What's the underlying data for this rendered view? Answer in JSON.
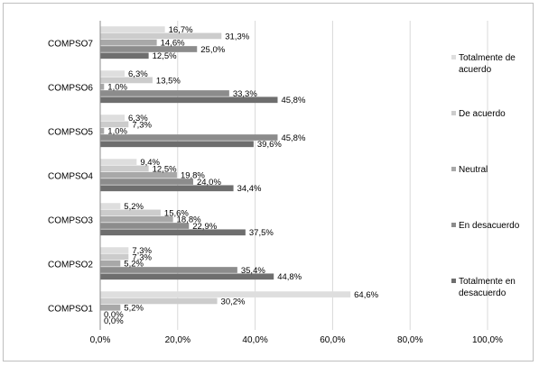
{
  "chart_data": {
    "type": "bar",
    "orientation": "horizontal",
    "categories": [
      "COMPSO1",
      "COMPSO2",
      "COMPSO3",
      "COMPSO4",
      "COMPSO5",
      "COMPSO6",
      "COMPSO7"
    ],
    "series": [
      {
        "name": "Totalmente de acuerdo",
        "color": "#dedede",
        "values": [
          64.6,
          7.3,
          5.2,
          9.4,
          6.3,
          6.3,
          16.7
        ],
        "labels": [
          "64,6%",
          "7,3%",
          "5,2%",
          "9,4%",
          "6,3%",
          "6,3%",
          "16,7%"
        ]
      },
      {
        "name": "De acuerdo",
        "color": "#cccccc",
        "values": [
          30.2,
          7.3,
          15.6,
          12.5,
          7.3,
          13.5,
          31.3
        ],
        "labels": [
          "30,2%",
          "7,3%",
          "15,6%",
          "12,5%",
          "7,3%",
          "13,5%",
          "31,3%"
        ]
      },
      {
        "name": "Neutral",
        "color": "#a8a8a8",
        "values": [
          5.2,
          5.2,
          18.8,
          19.8,
          1.0,
          1.0,
          14.6
        ],
        "labels": [
          "5,2%",
          "5,2%",
          "18,8%",
          "19,8%",
          "1,0%",
          "1,0%",
          "14,6%"
        ]
      },
      {
        "name": "En desacuerdo",
        "color": "#8c8c8c",
        "values": [
          0.0,
          35.4,
          22.9,
          24.0,
          45.8,
          33.3,
          25.0
        ],
        "labels": [
          "0,0%",
          "35,4%",
          "22,9%",
          "24,0%",
          "45,8%",
          "33,3%",
          "25,0%"
        ]
      },
      {
        "name": "Totalmente en desacuerdo",
        "color": "#6e6e6e",
        "values": [
          0.0,
          44.8,
          37.5,
          34.4,
          39.6,
          45.8,
          12.5
        ],
        "labels": [
          "0,0%",
          "44,8%",
          "37,5%",
          "34,4%",
          "39,6%",
          "45,8%",
          "12,5%"
        ]
      }
    ],
    "xlim": [
      0,
      100
    ],
    "x_ticks": [
      0,
      20,
      40,
      60,
      80,
      100
    ],
    "x_tick_labels": [
      "0,0%",
      "20,0%",
      "40,0%",
      "60,0%",
      "80,0%",
      "100,0%"
    ],
    "grid": "vertical",
    "legend_position": "right",
    "legend_order": [
      "Totalmente de acuerdo",
      "De acuerdo",
      "Neutral",
      "En desacuerdo",
      "Totalmente en desacuerdo"
    ],
    "legend_lines": [
      [
        "Totalmente de",
        "acuerdo"
      ],
      [
        "De acuerdo"
      ],
      [
        "Neutral"
      ],
      [
        "En desacuerdo"
      ],
      [
        "Totalmente en",
        "desacuerdo"
      ]
    ]
  }
}
